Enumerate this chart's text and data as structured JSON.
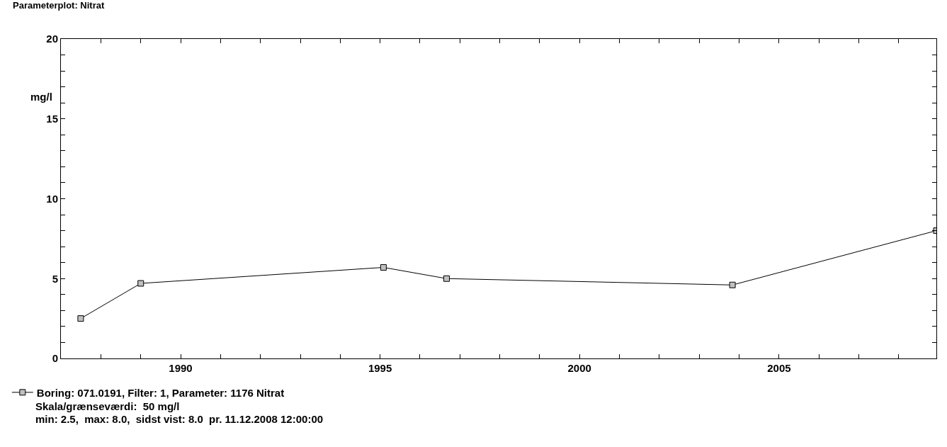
{
  "chart_data": {
    "type": "line",
    "title": "Parameterplot: Nitrat",
    "ylabel": "mg/l",
    "x": [
      "1987-07",
      "1989-01",
      "1995-02",
      "1996-09",
      "2003-11",
      "2008-12-11"
    ],
    "series": [
      {
        "name": "Boring: 071.0191, Filter: 1, Parameter: 1176 Nitrat",
        "color": "#000000",
        "values": [
          2.5,
          4.7,
          5.7,
          5.0,
          4.6,
          8.0
        ]
      }
    ],
    "xlim": [
      "1987-01-01",
      "2008-12-11"
    ],
    "xticks": [
      {
        "value": "1988",
        "label": null
      },
      {
        "value": "1989",
        "label": null
      },
      {
        "value": "1990",
        "label": "1990"
      },
      {
        "value": "1991",
        "label": null
      },
      {
        "value": "1992",
        "label": null
      },
      {
        "value": "1993",
        "label": null
      },
      {
        "value": "1994",
        "label": null
      },
      {
        "value": "1995",
        "label": "1995"
      },
      {
        "value": "1996",
        "label": null
      },
      {
        "value": "1997",
        "label": null
      },
      {
        "value": "1998",
        "label": null
      },
      {
        "value": "1999",
        "label": null
      },
      {
        "value": "2000",
        "label": "2000"
      },
      {
        "value": "2001",
        "label": null
      },
      {
        "value": "2002",
        "label": null
      },
      {
        "value": "2003",
        "label": null
      },
      {
        "value": "2004",
        "label": null
      },
      {
        "value": "2005",
        "label": "2005"
      },
      {
        "value": "2006",
        "label": null
      },
      {
        "value": "2007",
        "label": null
      },
      {
        "value": "2008",
        "label": null
      }
    ],
    "ylim": [
      0,
      20
    ],
    "yticks": [
      0,
      {
        "value": 1,
        "label": null
      },
      {
        "value": 2,
        "label": null
      },
      {
        "value": 3,
        "label": null
      },
      {
        "value": 4,
        "label": null
      },
      5,
      {
        "value": 6,
        "label": null
      },
      {
        "value": 7,
        "label": null
      },
      {
        "value": 8,
        "label": null
      },
      {
        "value": 9,
        "label": null
      },
      10,
      {
        "value": 11,
        "label": null
      },
      {
        "value": 12,
        "label": null
      },
      {
        "value": 13,
        "label": null
      },
      {
        "value": 14,
        "label": null
      },
      15,
      {
        "value": 16,
        "label": null
      },
      {
        "value": 17,
        "label": null
      },
      {
        "value": 18,
        "label": null
      },
      {
        "value": 19,
        "label": null
      },
      20
    ],
    "grid": false,
    "legend": "bottom",
    "marker": "square",
    "line_style": "solid",
    "annotations": [
      "Skala/grænseværdi:  50 mg/l",
      "min: 2.5,  max: 8.0,  sidst vist: 8.0  pr. 11.12.2008 12:00:00"
    ]
  }
}
